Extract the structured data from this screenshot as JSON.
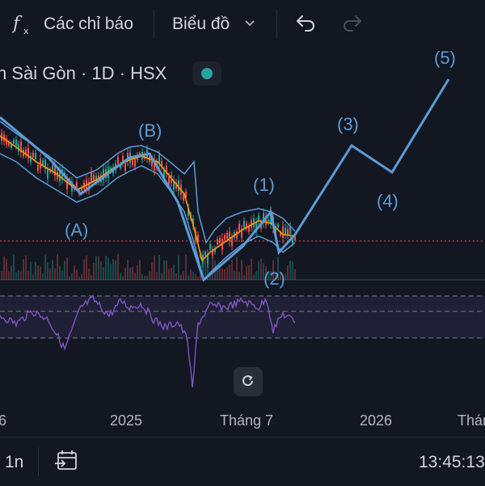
{
  "toolbar": {
    "indicators_icon": "function-fx-icon",
    "indicators_label": "Các chỉ báo",
    "chart_label": "Biểu đồ",
    "chart_dropdown_icon": "chevron-down-icon",
    "undo_icon": "undo-icon",
    "redo_icon": "redo-icon"
  },
  "legend": {
    "text": "n Sài Gòn · 1D · HSX",
    "status_color": "#26a69a"
  },
  "waves": {
    "labels": [
      "(A)",
      "(B)",
      "(1)",
      "(2)",
      "(3)",
      "(4)",
      "(5)"
    ],
    "color": "#5b9bd5"
  },
  "x_axis": {
    "ticks": [
      "6",
      "2025",
      "Tháng 7",
      "2026",
      "Tháng"
    ]
  },
  "reset_icon": "reset-icon",
  "bottom_bar": {
    "interval": "1n",
    "goto_icon": "goto-date-icon",
    "clock": "13:45:13"
  },
  "colors": {
    "background": "#131722",
    "rsi_line": "#7e57c2",
    "ma_line": "#ff9800",
    "price_line": "#ef5350",
    "up_candle": "#26a69a",
    "down_candle": "#ef5350"
  }
}
